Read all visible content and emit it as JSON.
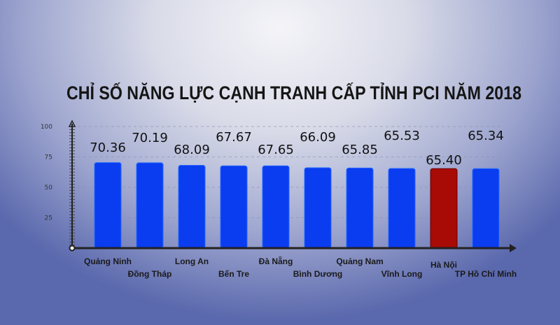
{
  "chart_data": {
    "type": "bar",
    "title": "CHỈ SỐ NĂNG LỰC CẠNH TRANH CẤP TỈNH PCI NĂM 2018",
    "xlabel": "",
    "ylabel": "",
    "ylim": [
      0,
      100
    ],
    "yticks": [
      "100",
      "75",
      "50",
      "25"
    ],
    "grid": true,
    "categories": [
      "Quảng Ninh",
      "Đồng Tháp",
      "Long An",
      "Bến Tre",
      "Đà Nẵng",
      "Bình Dương",
      "Quảng Nam",
      "Vĩnh Long",
      "Hà Nội",
      "TP Hồ Chí Minh"
    ],
    "values": [
      70.36,
      70.19,
      68.09,
      67.67,
      67.65,
      66.09,
      65.85,
      65.53,
      65.4,
      65.34
    ],
    "value_labels": [
      "70.36",
      "70.19",
      "68.09",
      "67.67",
      "67.65",
      "66.09",
      "65.85",
      "65.53",
      "65.40",
      "65.34"
    ],
    "highlight": "Hà Nội",
    "colors": {
      "bar": "#0a3cf0",
      "highlight": "#a80a05",
      "axis": "#222222"
    }
  }
}
